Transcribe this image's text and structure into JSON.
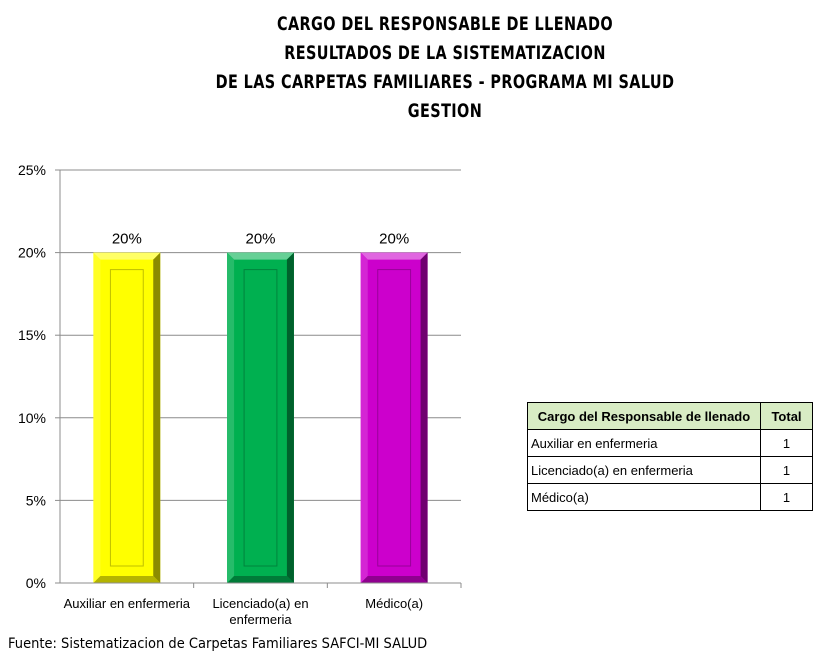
{
  "title_lines": [
    "CARGO DEL RESPONSABLE DE LLENADO",
    "RESULTADOS DE LA SISTEMATIZACION",
    "DE LAS CARPETAS FAMILIARES - PROGRAMA MI SALUD",
    "GESTION"
  ],
  "chart_data": {
    "type": "bar",
    "title": "CARGO DEL RESPONSABLE DE LLENADO RESULTADOS DE LA SISTEMATIZACION DE LAS CARPETAS FAMILIARES - PROGRAMA MI SALUD GESTION",
    "categories": [
      "Auxiliar en enfermeria",
      "Licenciado(a) en enfermeria",
      "Médico(a)"
    ],
    "category_lines": [
      [
        "Auxiliar en enfermeria"
      ],
      [
        "Licenciado(a) en",
        "enfermeria"
      ],
      [
        "Médico(a)"
      ]
    ],
    "values": [
      0.2,
      0.2,
      0.2
    ],
    "value_labels": [
      "20%",
      "20%",
      "20%"
    ],
    "bar_colors": [
      "#ffff00",
      "#00b050",
      "#cc00cc"
    ],
    "xlabel": "",
    "ylabel": "",
    "ylim": [
      0,
      0.25
    ],
    "yticks": [
      0,
      0.05,
      0.1,
      0.15,
      0.2,
      0.25
    ],
    "ytick_labels": [
      "0%",
      "5%",
      "10%",
      "15%",
      "20%",
      "25%"
    ],
    "grid": true,
    "legend": "none"
  },
  "table": {
    "headers": [
      "Cargo del Responsable de llenado",
      "Total"
    ],
    "rows": [
      [
        "Auxiliar en enfermeria",
        "1"
      ],
      [
        "Licenciado(a) en enfermeria",
        "1"
      ],
      [
        "Médico(a)",
        "1"
      ]
    ],
    "header_bg": "#d8ecc4"
  },
  "source": "Fuente: Sistematizacion de Carpetas Familiares SAFCI-MI SALUD"
}
